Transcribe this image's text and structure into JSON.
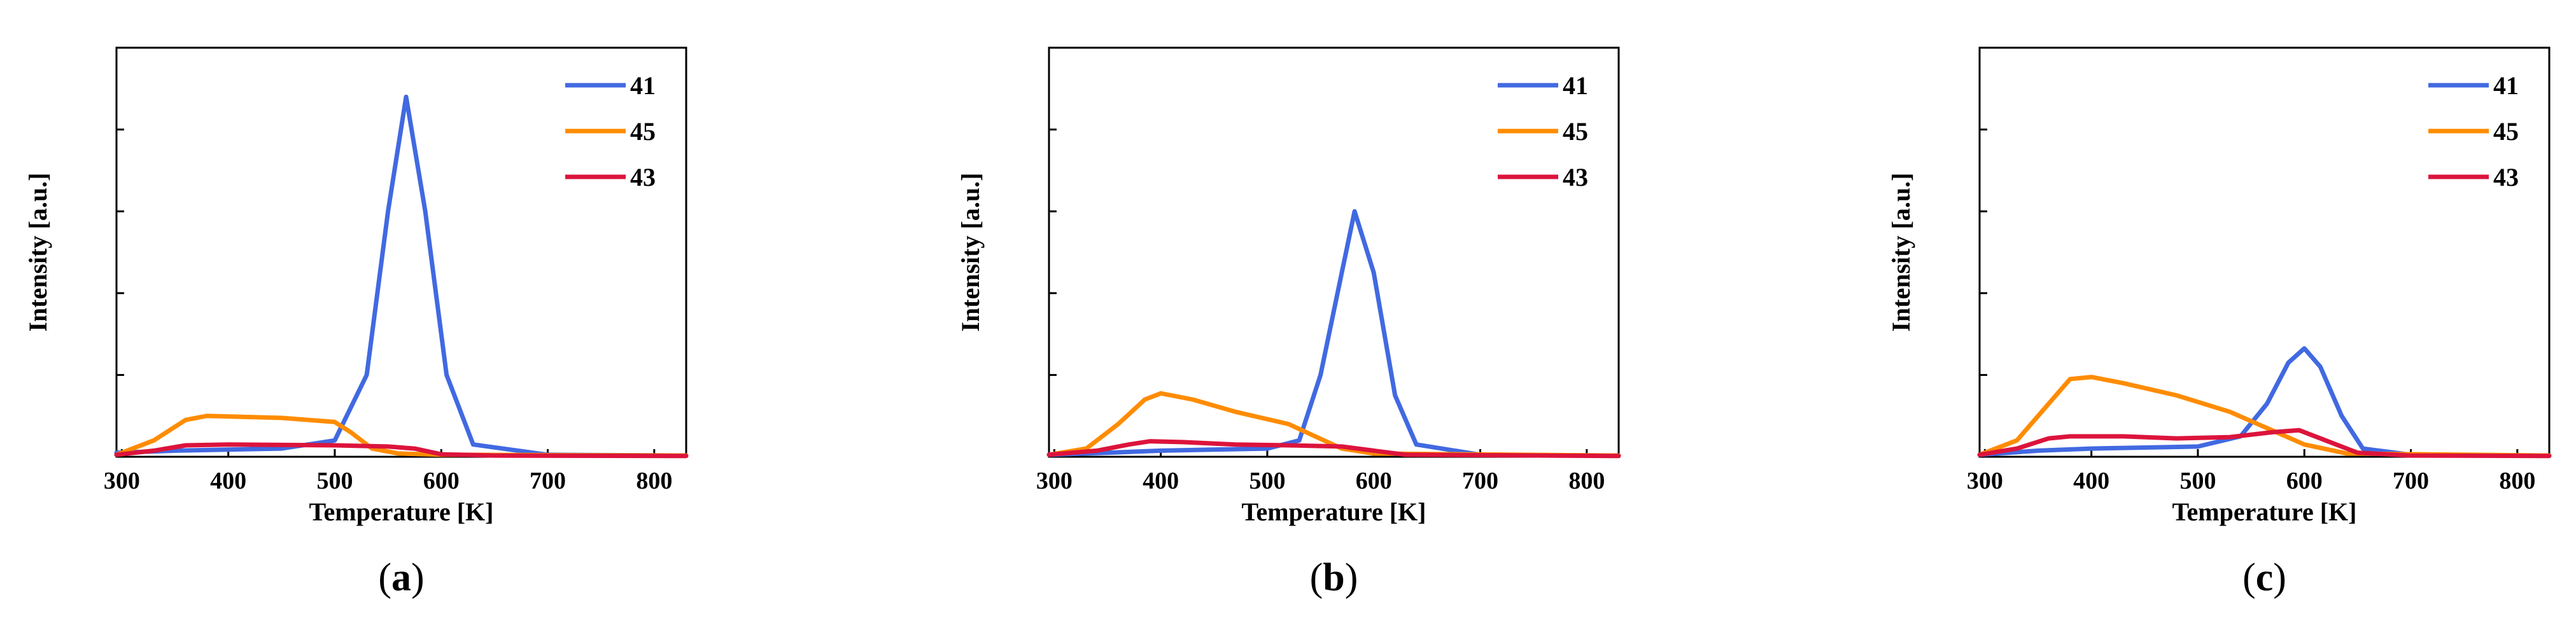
{
  "colors": {
    "41": "#4169E1",
    "45": "#FF8C00",
    "43": "#DC143C",
    "axis": "#000000"
  },
  "chart_data": [
    {
      "panel": "a",
      "panel_label": {
        "open": "(",
        "letter": "a",
        "close": ")"
      },
      "type": "line",
      "xlabel": "Temperature [K]",
      "ylabel": "Intensity [a.u.]",
      "xlim": [
        295,
        830
      ],
      "ylim": [
        0,
        1
      ],
      "x_ticks": [
        300,
        400,
        500,
        600,
        700,
        800
      ],
      "legend_position": "top-right",
      "series": [
        {
          "name": "41",
          "color": "#4169E1",
          "points": [
            [
              295,
              0.01
            ],
            [
              350,
              0.015
            ],
            [
              450,
              0.02
            ],
            [
              500,
              0.04
            ],
            [
              530,
              0.2
            ],
            [
              550,
              0.6
            ],
            [
              567,
              0.88
            ],
            [
              585,
              0.6
            ],
            [
              605,
              0.2
            ],
            [
              630,
              0.03
            ],
            [
              700,
              0.005
            ],
            [
              830,
              0.003
            ]
          ]
        },
        {
          "name": "45",
          "color": "#FF8C00",
          "points": [
            [
              295,
              0.005
            ],
            [
              330,
              0.04
            ],
            [
              360,
              0.09
            ],
            [
              380,
              0.1
            ],
            [
              450,
              0.095
            ],
            [
              500,
              0.085
            ],
            [
              515,
              0.06
            ],
            [
              535,
              0.02
            ],
            [
              560,
              0.008
            ],
            [
              600,
              0.005
            ],
            [
              830,
              0.003
            ]
          ]
        },
        {
          "name": "43",
          "color": "#DC143C",
          "points": [
            [
              295,
              0.005
            ],
            [
              330,
              0.015
            ],
            [
              360,
              0.028
            ],
            [
              400,
              0.03
            ],
            [
              500,
              0.028
            ],
            [
              550,
              0.025
            ],
            [
              575,
              0.02
            ],
            [
              600,
              0.006
            ],
            [
              650,
              0.003
            ],
            [
              830,
              0.002
            ]
          ]
        }
      ]
    },
    {
      "panel": "b",
      "panel_label": {
        "open": "(",
        "letter": "b",
        "close": ")"
      },
      "type": "line",
      "xlabel": "Temperature [K]",
      "ylabel": "Intensity [a.u.]",
      "xlim": [
        295,
        830
      ],
      "ylim": [
        0,
        1
      ],
      "x_ticks": [
        300,
        400,
        500,
        600,
        700,
        800
      ],
      "legend_position": "top-right",
      "series": [
        {
          "name": "41",
          "color": "#4169E1",
          "points": [
            [
              295,
              0.005
            ],
            [
              350,
              0.01
            ],
            [
              400,
              0.015
            ],
            [
              500,
              0.02
            ],
            [
              530,
              0.04
            ],
            [
              550,
              0.2
            ],
            [
              570,
              0.45
            ],
            [
              582,
              0.6
            ],
            [
              600,
              0.45
            ],
            [
              620,
              0.15
            ],
            [
              640,
              0.03
            ],
            [
              700,
              0.005
            ],
            [
              830,
              0.003
            ]
          ]
        },
        {
          "name": "45",
          "color": "#FF8C00",
          "points": [
            [
              295,
              0.005
            ],
            [
              330,
              0.02
            ],
            [
              360,
              0.08
            ],
            [
              385,
              0.14
            ],
            [
              400,
              0.155
            ],
            [
              430,
              0.14
            ],
            [
              470,
              0.11
            ],
            [
              520,
              0.08
            ],
            [
              545,
              0.05
            ],
            [
              570,
              0.02
            ],
            [
              600,
              0.008
            ],
            [
              830,
              0.003
            ]
          ]
        },
        {
          "name": "43",
          "color": "#DC143C",
          "points": [
            [
              295,
              0.005
            ],
            [
              340,
              0.015
            ],
            [
              370,
              0.03
            ],
            [
              390,
              0.038
            ],
            [
              420,
              0.036
            ],
            [
              470,
              0.03
            ],
            [
              520,
              0.028
            ],
            [
              570,
              0.025
            ],
            [
              600,
              0.015
            ],
            [
              630,
              0.005
            ],
            [
              830,
              0.002
            ]
          ]
        }
      ]
    },
    {
      "panel": "c",
      "panel_label": {
        "open": "(",
        "letter": "c",
        "close": ")"
      },
      "type": "line",
      "xlabel": "Temperature [K]",
      "ylabel": "Intensity [a.u.]",
      "xlim": [
        295,
        830
      ],
      "ylim": [
        0,
        1
      ],
      "x_ticks": [
        300,
        400,
        500,
        600,
        700,
        800
      ],
      "legend_position": "top-right",
      "series": [
        {
          "name": "41",
          "color": "#4169E1",
          "points": [
            [
              295,
              0.005
            ],
            [
              350,
              0.015
            ],
            [
              400,
              0.02
            ],
            [
              500,
              0.025
            ],
            [
              540,
              0.05
            ],
            [
              565,
              0.13
            ],
            [
              585,
              0.23
            ],
            [
              600,
              0.265
            ],
            [
              615,
              0.22
            ],
            [
              635,
              0.1
            ],
            [
              655,
              0.02
            ],
            [
              700,
              0.005
            ],
            [
              830,
              0.003
            ]
          ]
        },
        {
          "name": "45",
          "color": "#FF8C00",
          "points": [
            [
              295,
              0.005
            ],
            [
              330,
              0.04
            ],
            [
              360,
              0.13
            ],
            [
              380,
              0.19
            ],
            [
              400,
              0.195
            ],
            [
              430,
              0.18
            ],
            [
              480,
              0.15
            ],
            [
              530,
              0.11
            ],
            [
              565,
              0.07
            ],
            [
              600,
              0.03
            ],
            [
              640,
              0.008
            ],
            [
              830,
              0.003
            ]
          ]
        },
        {
          "name": "43",
          "color": "#DC143C",
          "points": [
            [
              295,
              0.005
            ],
            [
              330,
              0.02
            ],
            [
              360,
              0.045
            ],
            [
              380,
              0.05
            ],
            [
              430,
              0.05
            ],
            [
              480,
              0.045
            ],
            [
              530,
              0.048
            ],
            [
              570,
              0.06
            ],
            [
              595,
              0.065
            ],
            [
              620,
              0.04
            ],
            [
              650,
              0.01
            ],
            [
              700,
              0.003
            ],
            [
              830,
              0.002
            ]
          ]
        }
      ]
    }
  ]
}
